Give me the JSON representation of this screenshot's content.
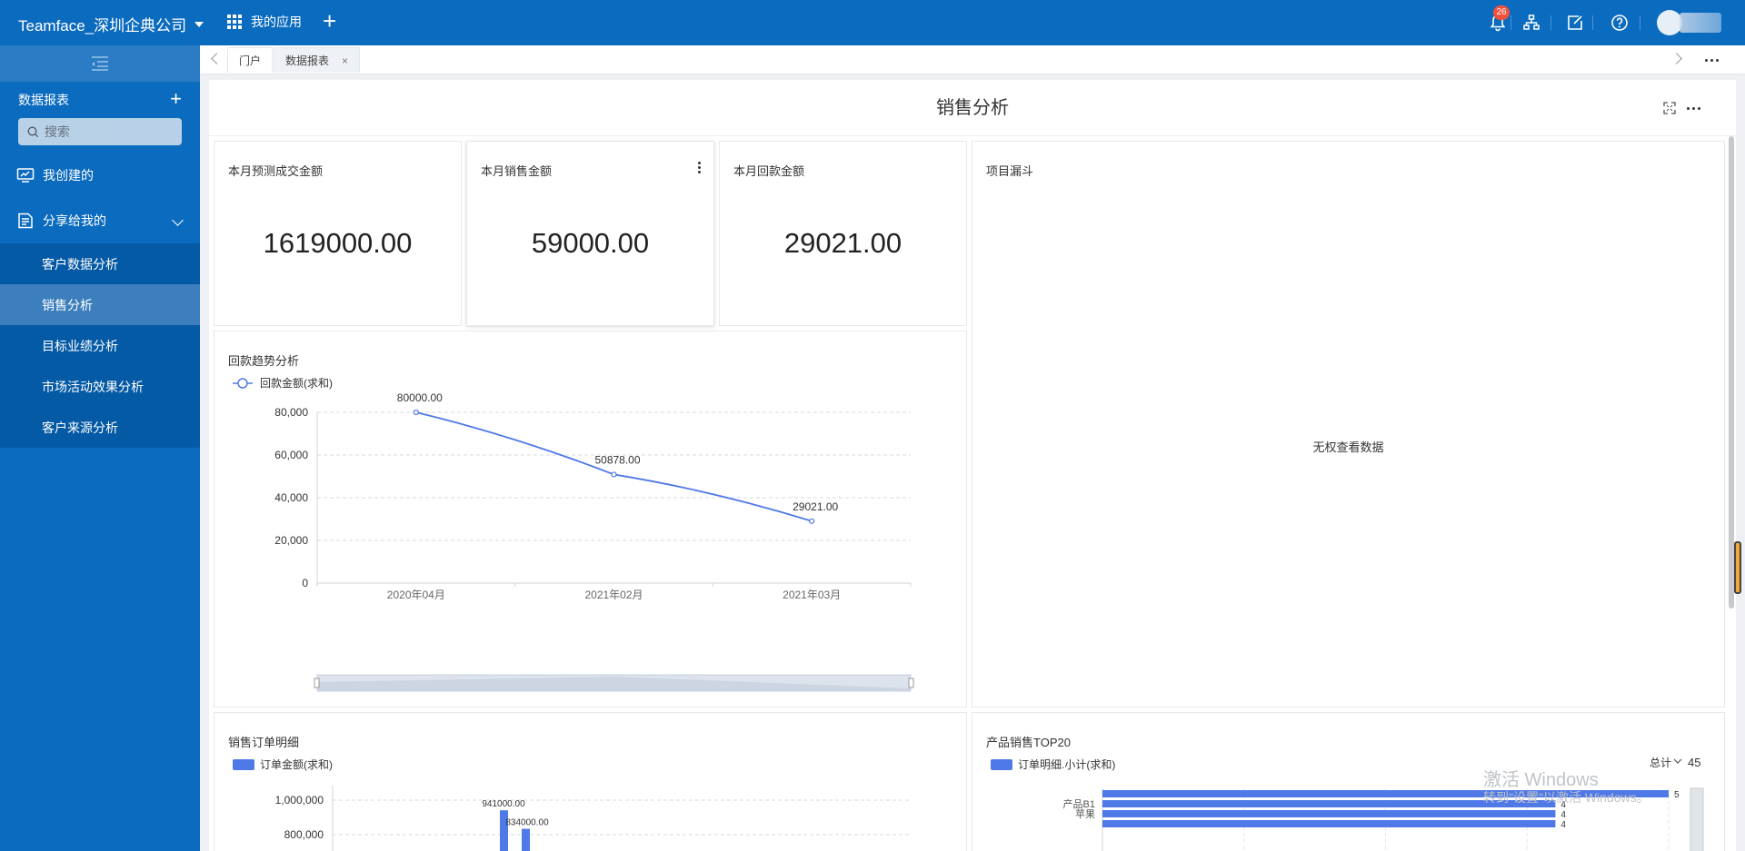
{
  "topbar": {
    "company": "Teamface_深圳企典公司",
    "my_apps": "我的应用",
    "notification_count": "26"
  },
  "sidebar": {
    "section_title": "数据报表",
    "search_placeholder": "搜索",
    "items": [
      {
        "label": "我创建的"
      },
      {
        "label": "分享给我的"
      }
    ],
    "subitems": [
      {
        "label": "客户数据分析"
      },
      {
        "label": "销售分析"
      },
      {
        "label": "目标业绩分析"
      },
      {
        "label": "市场活动效果分析"
      },
      {
        "label": "客户来源分析"
      }
    ]
  },
  "tabs": [
    {
      "label": "门户"
    },
    {
      "label": "数据报表"
    }
  ],
  "page": {
    "title": "销售分析"
  },
  "kpis": [
    {
      "title": "本月预测成交金额",
      "value": "1619000.00"
    },
    {
      "title": "本月销售金额",
      "value": "59000.00"
    },
    {
      "title": "本月回款金额",
      "value": "29021.00"
    }
  ],
  "funnel": {
    "title": "项目漏斗",
    "message": "无权查看数据"
  },
  "watermark": {
    "line1": "激活 Windows",
    "line2": "转到\"设置\"以激活 Windows。"
  },
  "colors": {
    "brand": "#0b6bbf",
    "series": "#4e79e6"
  },
  "chart_data": [
    {
      "type": "line",
      "title": "回款趋势分析",
      "legend": "回款金额(求和)",
      "categories": [
        "2020年04月",
        "2021年02月",
        "2021年03月"
      ],
      "series": [
        {
          "name": "回款金额(求和)",
          "values": [
            80000,
            50878,
            29021
          ]
        }
      ],
      "labels": [
        "80000.00",
        "50878.00",
        "29021.00"
      ],
      "yticks": [
        "0",
        "20,000",
        "40,000",
        "60,000",
        "80,000"
      ],
      "ylim": [
        0,
        80000
      ]
    },
    {
      "type": "bar",
      "title": "销售订单明细",
      "legend": "订单金额(求和)",
      "yticks": [
        "800,000",
        "1,000,000"
      ],
      "series": [
        {
          "name": "订单金额(求和)",
          "values": [
            941000,
            834000
          ]
        }
      ],
      "labels": [
        "941000.00",
        "834000.00"
      ]
    },
    {
      "type": "bar",
      "title": "产品销售TOP20",
      "legend": "订单明细.小计(求和)",
      "total_label": "总计",
      "total_value": "45",
      "categories": [
        "",
        "产品B1",
        "苹果",
        ""
      ],
      "values": [
        5,
        4,
        4,
        4
      ]
    }
  ]
}
